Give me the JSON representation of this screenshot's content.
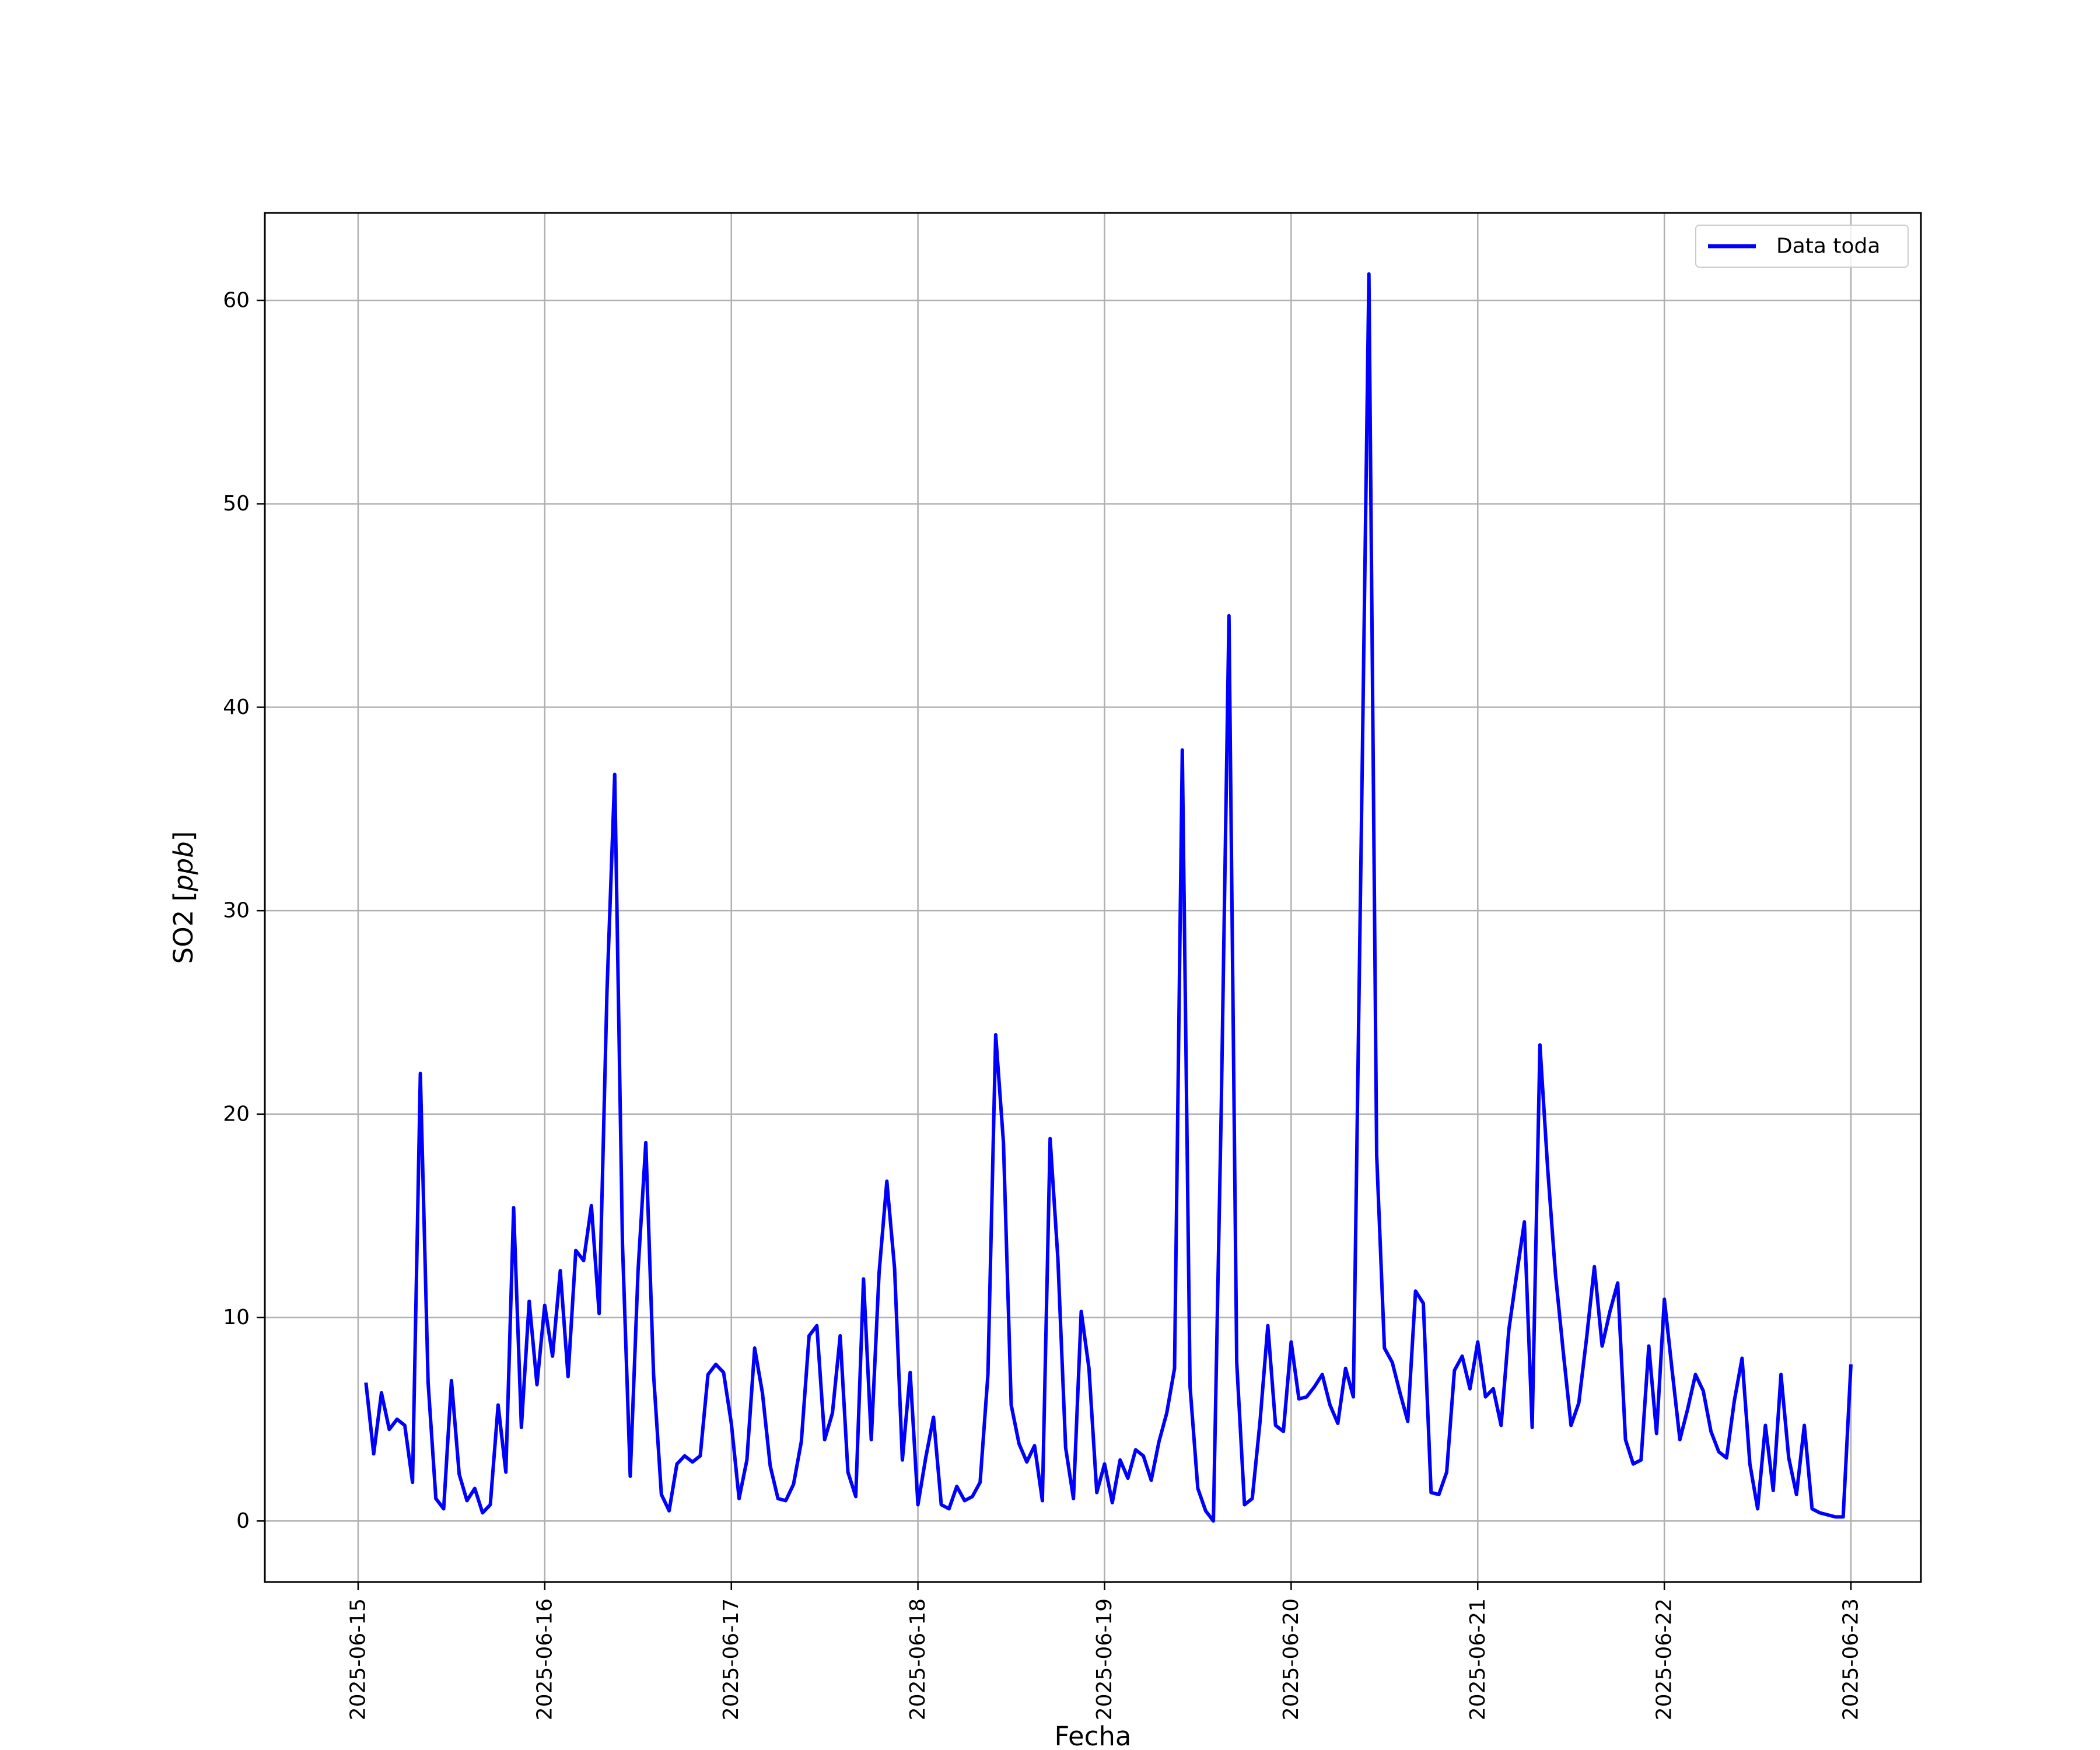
{
  "chart_data": {
    "type": "line",
    "xlabel": "Fecha",
    "ylabel": "SO2 [ppb]",
    "ylabel_parts": {
      "prefix": "SO2 [",
      "italic": "ppb",
      "suffix": "]"
    },
    "x_tick_labels": [
      "2025-06-15",
      "2025-06-16",
      "2025-06-17",
      "2025-06-18",
      "2025-06-19",
      "2025-06-20",
      "2025-06-21",
      "2025-06-22",
      "2025-06-23"
    ],
    "y_ticks": [
      0,
      10,
      20,
      30,
      40,
      50,
      60
    ],
    "xlim": [
      "2025-06-14 12:00",
      "2025-06-23 09:00"
    ],
    "ylim": [
      -3.0,
      64.3
    ],
    "grid": true,
    "legend_position": "top-right",
    "colors": {
      "series": "#0000ff",
      "grid": "#b0b0b0",
      "frame": "#000000",
      "legend_border": "#cccccc"
    },
    "series": [
      {
        "name": "Data toda",
        "x": [
          "2025-06-15 01:00",
          "2025-06-15 02:00",
          "2025-06-15 03:00",
          "2025-06-15 04:00",
          "2025-06-15 05:00",
          "2025-06-15 06:00",
          "2025-06-15 07:00",
          "2025-06-15 08:00",
          "2025-06-15 09:00",
          "2025-06-15 10:00",
          "2025-06-15 11:00",
          "2025-06-15 12:00",
          "2025-06-15 13:00",
          "2025-06-15 14:00",
          "2025-06-15 15:00",
          "2025-06-15 16:00",
          "2025-06-15 17:00",
          "2025-06-15 18:00",
          "2025-06-15 19:00",
          "2025-06-15 20:00",
          "2025-06-15 21:00",
          "2025-06-15 22:00",
          "2025-06-15 23:00",
          "2025-06-16 00:00",
          "2025-06-16 01:00",
          "2025-06-16 02:00",
          "2025-06-16 03:00",
          "2025-06-16 04:00",
          "2025-06-16 05:00",
          "2025-06-16 06:00",
          "2025-06-16 07:00",
          "2025-06-16 08:00",
          "2025-06-16 09:00",
          "2025-06-16 10:00",
          "2025-06-16 11:00",
          "2025-06-16 12:00",
          "2025-06-16 13:00",
          "2025-06-16 14:00",
          "2025-06-16 15:00",
          "2025-06-16 16:00",
          "2025-06-16 17:00",
          "2025-06-16 18:00",
          "2025-06-16 19:00",
          "2025-06-16 20:00",
          "2025-06-16 21:00",
          "2025-06-16 22:00",
          "2025-06-16 23:00",
          "2025-06-17 00:00",
          "2025-06-17 01:00",
          "2025-06-17 02:00",
          "2025-06-17 03:00",
          "2025-06-17 04:00",
          "2025-06-17 05:00",
          "2025-06-17 06:00",
          "2025-06-17 07:00",
          "2025-06-17 08:00",
          "2025-06-17 09:00",
          "2025-06-17 10:00",
          "2025-06-17 11:00",
          "2025-06-17 12:00",
          "2025-06-17 13:00",
          "2025-06-17 14:00",
          "2025-06-17 15:00",
          "2025-06-17 16:00",
          "2025-06-17 17:00",
          "2025-06-17 18:00",
          "2025-06-17 19:00",
          "2025-06-17 20:00",
          "2025-06-17 21:00",
          "2025-06-17 22:00",
          "2025-06-17 23:00",
          "2025-06-18 00:00",
          "2025-06-18 01:00",
          "2025-06-18 02:00",
          "2025-06-18 03:00",
          "2025-06-18 04:00",
          "2025-06-18 05:00",
          "2025-06-18 06:00",
          "2025-06-18 07:00",
          "2025-06-18 08:00",
          "2025-06-18 09:00",
          "2025-06-18 10:00",
          "2025-06-18 11:00",
          "2025-06-18 12:00",
          "2025-06-18 13:00",
          "2025-06-18 14:00",
          "2025-06-18 15:00",
          "2025-06-18 16:00",
          "2025-06-18 17:00",
          "2025-06-18 18:00",
          "2025-06-18 19:00",
          "2025-06-18 20:00",
          "2025-06-18 21:00",
          "2025-06-18 22:00",
          "2025-06-18 23:00",
          "2025-06-19 00:00",
          "2025-06-19 01:00",
          "2025-06-19 02:00",
          "2025-06-19 03:00",
          "2025-06-19 04:00",
          "2025-06-19 05:00",
          "2025-06-19 06:00",
          "2025-06-19 07:00",
          "2025-06-19 08:00",
          "2025-06-19 09:00",
          "2025-06-19 10:00",
          "2025-06-19 11:00",
          "2025-06-19 12:00",
          "2025-06-19 13:00",
          "2025-06-19 14:00",
          "2025-06-19 15:00",
          "2025-06-19 16:00",
          "2025-06-19 17:00",
          "2025-06-19 18:00",
          "2025-06-19 19:00",
          "2025-06-19 20:00",
          "2025-06-19 21:00",
          "2025-06-19 22:00",
          "2025-06-19 23:00",
          "2025-06-20 00:00",
          "2025-06-20 01:00",
          "2025-06-20 02:00",
          "2025-06-20 03:00",
          "2025-06-20 04:00",
          "2025-06-20 05:00",
          "2025-06-20 06:00",
          "2025-06-20 07:00",
          "2025-06-20 08:00",
          "2025-06-20 09:00",
          "2025-06-20 10:00",
          "2025-06-20 11:00",
          "2025-06-20 12:00",
          "2025-06-20 13:00",
          "2025-06-20 14:00",
          "2025-06-20 15:00",
          "2025-06-20 16:00",
          "2025-06-20 17:00",
          "2025-06-20 18:00",
          "2025-06-20 19:00",
          "2025-06-20 20:00",
          "2025-06-20 21:00",
          "2025-06-20 22:00",
          "2025-06-20 23:00",
          "2025-06-21 00:00",
          "2025-06-21 01:00",
          "2025-06-21 02:00",
          "2025-06-21 03:00",
          "2025-06-21 04:00",
          "2025-06-21 05:00",
          "2025-06-21 06:00",
          "2025-06-21 07:00",
          "2025-06-21 08:00",
          "2025-06-21 09:00",
          "2025-06-21 10:00",
          "2025-06-21 11:00",
          "2025-06-21 12:00",
          "2025-06-21 13:00",
          "2025-06-21 14:00",
          "2025-06-21 15:00",
          "2025-06-21 16:00",
          "2025-06-21 17:00",
          "2025-06-21 18:00",
          "2025-06-21 19:00",
          "2025-06-21 20:00",
          "2025-06-21 21:00",
          "2025-06-21 22:00",
          "2025-06-21 23:00",
          "2025-06-22 00:00",
          "2025-06-22 01:00",
          "2025-06-22 02:00",
          "2025-06-22 03:00",
          "2025-06-22 04:00",
          "2025-06-22 05:00",
          "2025-06-22 06:00",
          "2025-06-22 07:00",
          "2025-06-22 08:00",
          "2025-06-22 09:00",
          "2025-06-22 10:00",
          "2025-06-22 11:00",
          "2025-06-22 12:00",
          "2025-06-22 13:00",
          "2025-06-22 14:00",
          "2025-06-22 15:00",
          "2025-06-22 16:00",
          "2025-06-22 17:00",
          "2025-06-22 18:00",
          "2025-06-22 19:00",
          "2025-06-22 20:00",
          "2025-06-22 21:00",
          "2025-06-22 22:00",
          "2025-06-22 23:00",
          "2025-06-23 00:00"
        ],
        "values": [
          6.8,
          3.3,
          6.3,
          4.5,
          5.0,
          4.7,
          1.9,
          22.0,
          6.8,
          1.1,
          0.6,
          6.9,
          2.3,
          1.0,
          1.6,
          0.4,
          0.8,
          5.7,
          2.4,
          15.4,
          4.6,
          10.8,
          6.7,
          10.6,
          8.1,
          12.3,
          7.1,
          13.3,
          12.8,
          15.5,
          10.2,
          26.0,
          36.7,
          13.6,
          2.2,
          12.3,
          18.6,
          7.2,
          1.3,
          0.5,
          2.8,
          3.2,
          2.9,
          3.2,
          7.2,
          7.7,
          7.3,
          4.8,
          1.1,
          3.0,
          8.5,
          6.3,
          2.7,
          1.1,
          1.0,
          1.8,
          3.9,
          9.1,
          9.6,
          4.0,
          5.3,
          9.1,
          2.4,
          1.2,
          11.9,
          4.0,
          12.2,
          16.7,
          12.4,
          3.0,
          7.3,
          0.8,
          3.1,
          5.1,
          0.8,
          0.6,
          1.7,
          1.0,
          1.2,
          1.9,
          7.2,
          23.9,
          18.6,
          5.7,
          3.8,
          2.9,
          3.7,
          1.0,
          18.8,
          12.9,
          3.6,
          1.1,
          10.3,
          7.5,
          1.4,
          2.8,
          0.9,
          3.0,
          2.1,
          3.5,
          3.2,
          2.0,
          3.9,
          5.3,
          7.5,
          37.9,
          6.6,
          1.6,
          0.5,
          0.0,
          20.0,
          44.5,
          7.8,
          0.8,
          1.1,
          4.9,
          9.6,
          4.7,
          4.4,
          8.8,
          6.0,
          6.1,
          6.6,
          7.2,
          5.7,
          4.8,
          7.5,
          6.1,
          33.0,
          61.3,
          18.0,
          8.5,
          7.8,
          6.3,
          4.9,
          11.3,
          10.7,
          1.4,
          1.3,
          2.4,
          7.4,
          8.1,
          6.5,
          8.8,
          6.1,
          6.5,
          4.7,
          9.4,
          12.1,
          14.7,
          4.6,
          23.4,
          17.3,
          12.1,
          8.3,
          4.7,
          5.8,
          9.0,
          12.5,
          8.6,
          10.3,
          11.7,
          4.0,
          2.8,
          3.0,
          8.6,
          4.3,
          10.9,
          7.4,
          4.0,
          5.5,
          7.2,
          6.4,
          4.4,
          3.4,
          3.1,
          5.9,
          8.0,
          2.8,
          0.6,
          4.7,
          1.5,
          7.2,
          3.1,
          1.3,
          4.7,
          0.6,
          0.4,
          0.3,
          0.2,
          0.2,
          7.7
        ]
      }
    ]
  }
}
